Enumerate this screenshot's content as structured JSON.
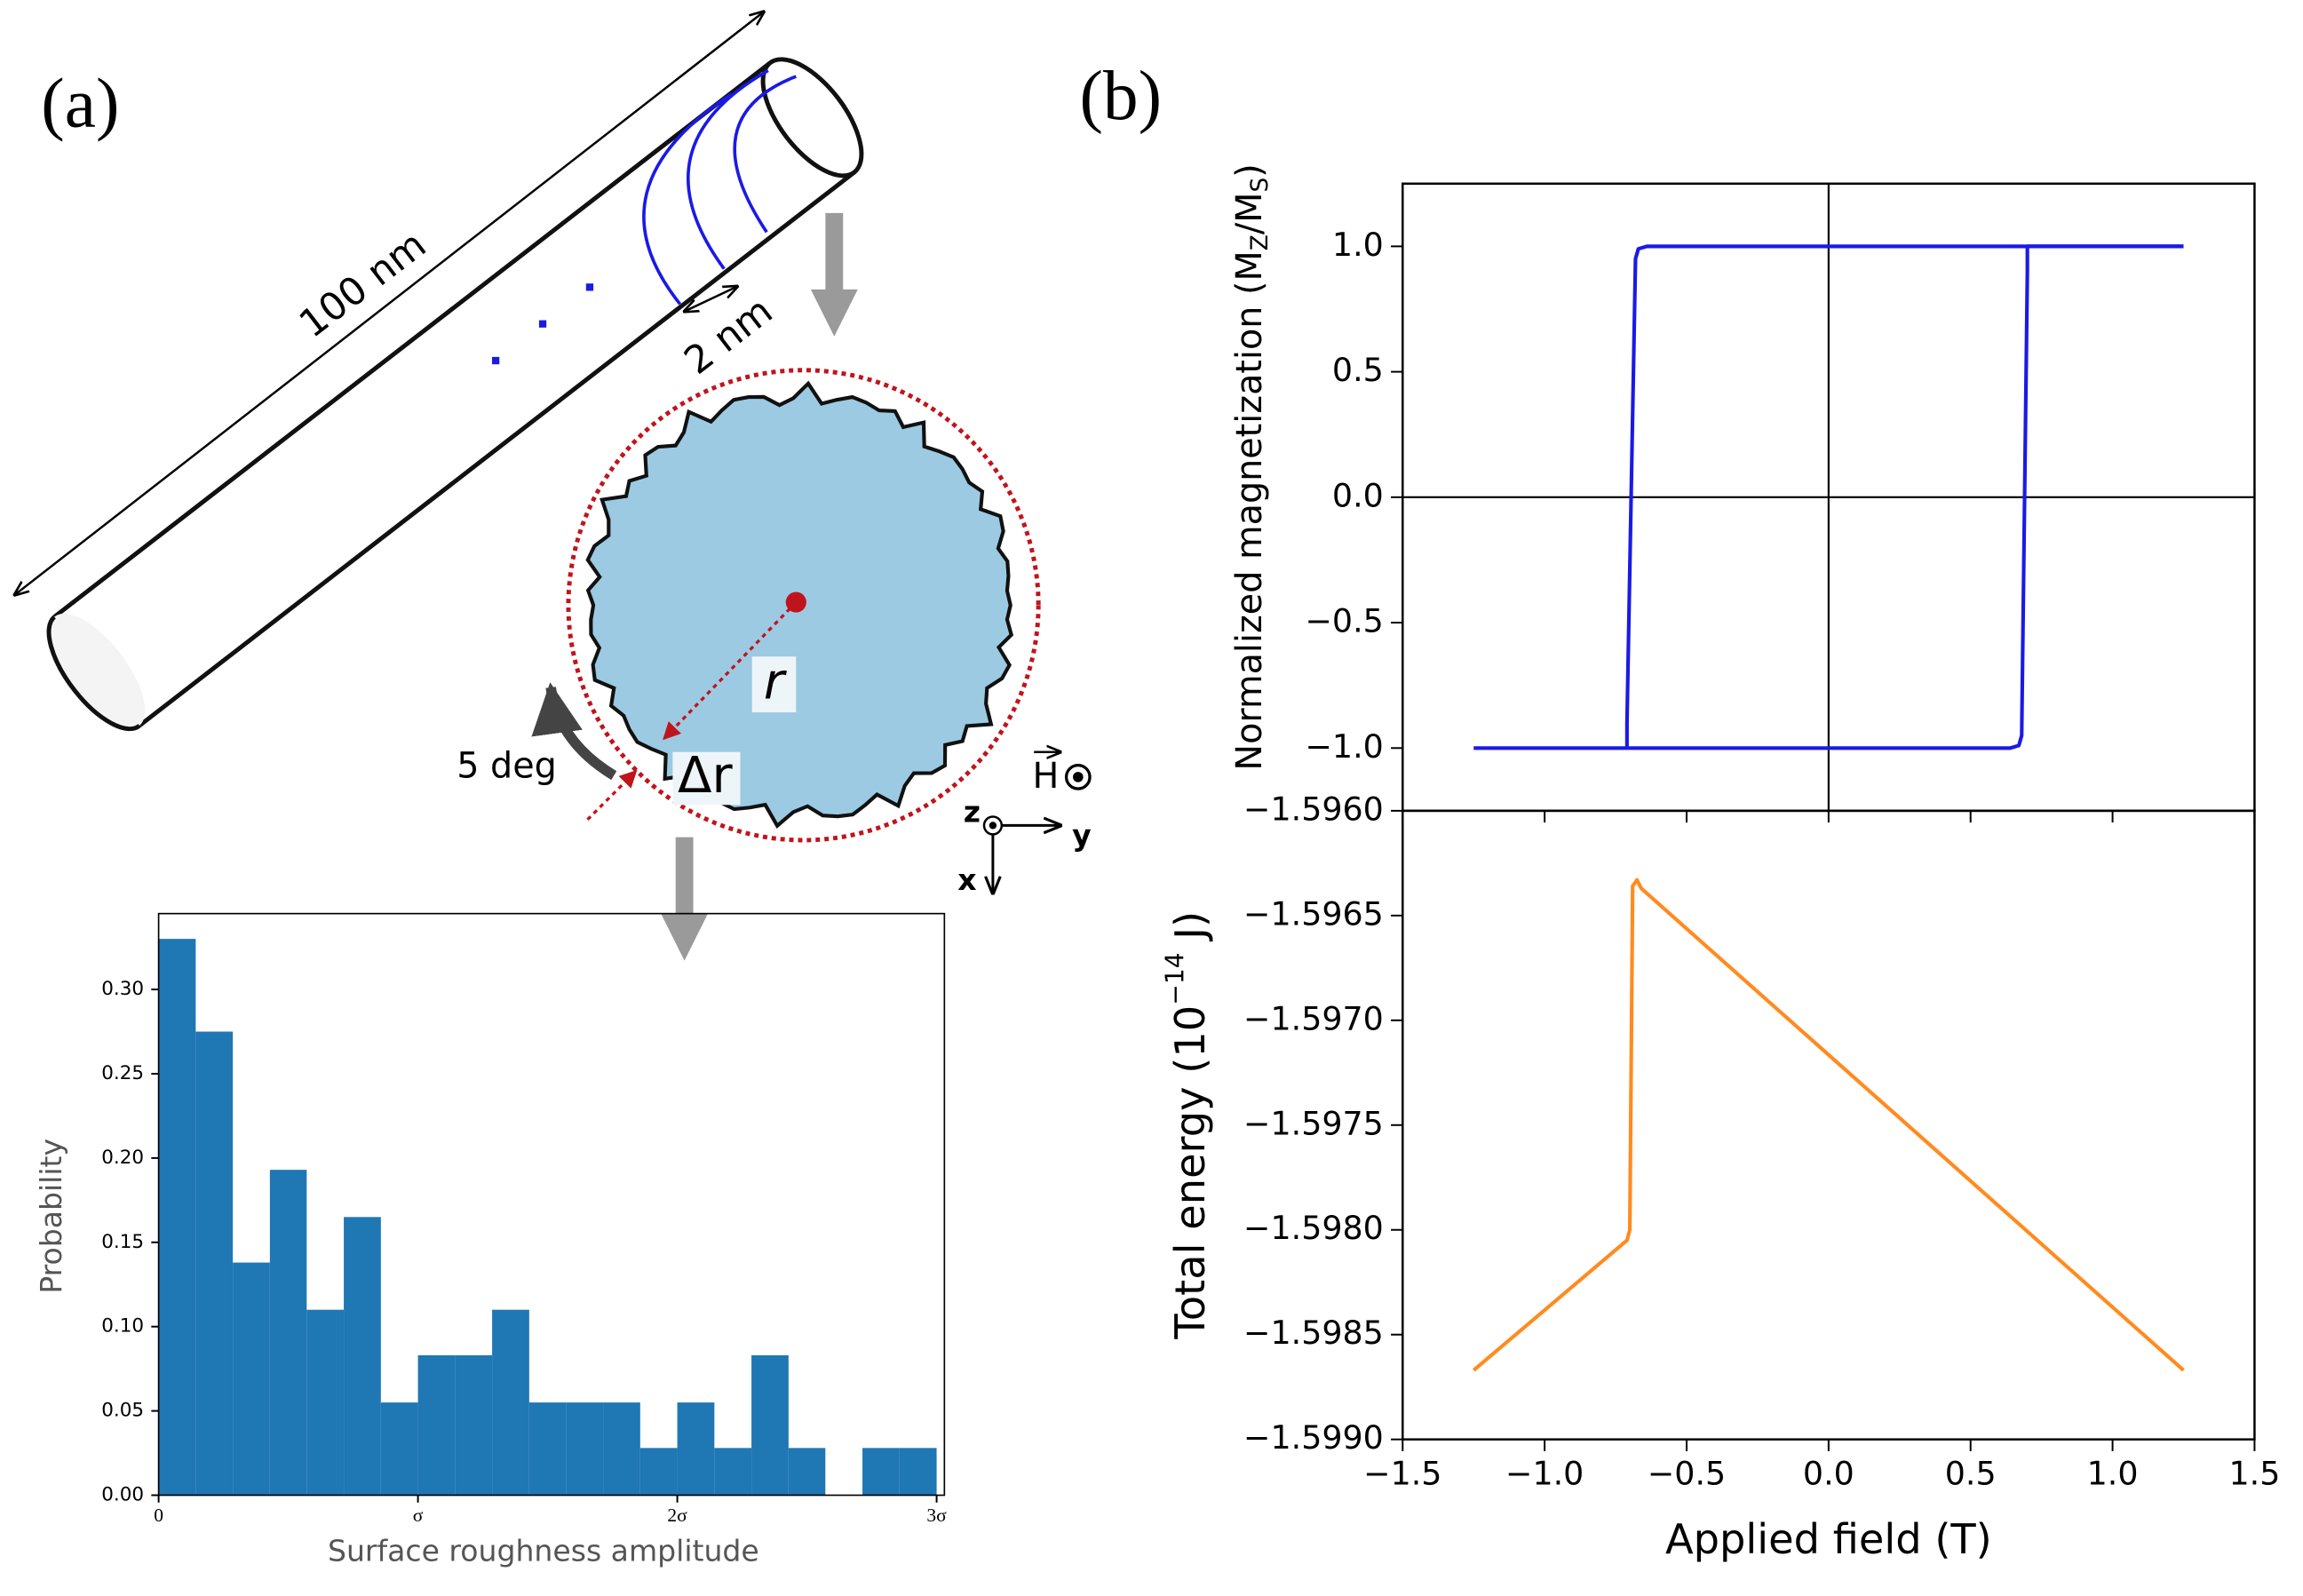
{
  "diagram": {
    "panel_a": "(a)",
    "panel_b": "(b)",
    "length": "100 nm",
    "spacing": "2 nm",
    "radius": "r",
    "delta_r": "Δr",
    "angle": "5 deg",
    "field": "H",
    "axis_z": "z",
    "axis_y": "y",
    "axis_x": "x"
  },
  "chart_data": [
    {
      "type": "histogram",
      "xlabel": "Surface roughness amplitude",
      "ylabel": "Probability",
      "color": "#1f77b4",
      "bins": [
        0,
        0.143,
        0.286,
        0.429,
        0.571,
        0.714,
        0.857,
        1,
        1.143,
        1.286,
        1.429,
        1.571,
        1.714,
        1.857,
        2,
        2.143,
        2.286,
        2.429,
        2.571,
        2.714,
        2.857,
        3
      ],
      "values": [
        0.33,
        0.275,
        0.138,
        0.193,
        0.11,
        0.165,
        0.055,
        0.083,
        0.083,
        0.11,
        0.055,
        0.055,
        0.055,
        0.028,
        0.055,
        0.028,
        0.083,
        0.028,
        0,
        0.028,
        0.028
      ],
      "xlim": [
        0,
        3.03
      ],
      "xticks": [
        0,
        {
          "value": 1,
          "label": "σ"
        },
        {
          "value": 2,
          "label": "2σ"
        },
        {
          "value": 3,
          "label": "3σ"
        }
      ],
      "ylim": [
        0,
        0.345
      ],
      "yticks": [
        {
          "value": 0,
          "label": "0.00"
        },
        {
          "value": 0.05,
          "label": "0.05"
        },
        {
          "value": 0.1,
          "label": "0.10"
        },
        {
          "value": 0.15,
          "label": "0.15"
        },
        {
          "value": 0.2,
          "label": "0.20"
        },
        {
          "value": 0.25,
          "label": "0.25"
        },
        {
          "value": 0.3,
          "label": "0.30"
        }
      ]
    },
    {
      "type": "line",
      "ylabel_parts": [
        "Normalized magnetization (M",
        "Z",
        "/M",
        "S",
        ")"
      ],
      "origin": [
        0,
        0
      ],
      "xtick_labels": false,
      "xlim": [
        -1.5,
        1.5
      ],
      "xticks": [
        -1.5,
        -1,
        -0.5,
        0,
        0.5,
        1,
        1.5
      ],
      "ylim": [
        -1.25,
        1.25
      ],
      "yticks": [
        {
          "value": -1,
          "label": "−1.0"
        },
        {
          "value": -0.5,
          "label": "−0.5"
        },
        {
          "value": 0,
          "label": "0.0"
        },
        {
          "value": 0.5,
          "label": "0.5"
        },
        {
          "value": 1,
          "label": "1.0"
        }
      ],
      "series": [
        {
          "color": "#1a1ae6",
          "x": [
            1.25,
            -0.64,
            -0.67,
            -0.68,
            -0.71,
            -0.71
          ],
          "values": [
            1,
            1,
            0.99,
            0.95,
            -0.9,
            -1
          ]
        },
        {
          "color": "#1a1ae6",
          "x": [
            -1.25,
            0.64,
            0.67,
            0.68,
            0.7,
            0.7,
            1.25
          ],
          "values": [
            -1,
            -1,
            -0.99,
            -0.95,
            0.9,
            1,
            1
          ]
        }
      ]
    },
    {
      "type": "line",
      "xlabel": "Applied field (T)",
      "ylabel_parts": [
        "Total energy (10",
        "−14",
        " J)"
      ],
      "xtick_labels": true,
      "xlim": [
        -1.5,
        1.5
      ],
      "xticks": [
        {
          "value": -1.5,
          "label": "−1.5"
        },
        {
          "value": -1,
          "label": "−1.0"
        },
        {
          "value": -0.5,
          "label": "−0.5"
        },
        {
          "value": 0,
          "label": "0.0"
        },
        {
          "value": 0.5,
          "label": "0.5"
        },
        {
          "value": 1,
          "label": "1.0"
        },
        {
          "value": 1.5,
          "label": "1.5"
        }
      ],
      "ylim": [
        -1.599,
        -1.596
      ],
      "yticks": [
        {
          "value": -1.599,
          "label": "−1.5990"
        },
        {
          "value": -1.5985,
          "label": "−1.5985"
        },
        {
          "value": -1.598,
          "label": "−1.5980"
        },
        {
          "value": -1.5975,
          "label": "−1.5975"
        },
        {
          "value": -1.597,
          "label": "−1.5970"
        },
        {
          "value": -1.5965,
          "label": "−1.5965"
        },
        {
          "value": -1.596,
          "label": "−1.5960"
        }
      ],
      "series": [
        {
          "color": "#ff8b1f",
          "x": [
            -1.25,
            -0.71,
            -0.7,
            -0.69,
            -0.675,
            -0.66,
            1.25
          ],
          "values": [
            -1.59867,
            -1.59805,
            -1.598,
            -1.59636,
            -1.59633,
            -1.59637,
            -1.59867
          ]
        }
      ]
    }
  ]
}
